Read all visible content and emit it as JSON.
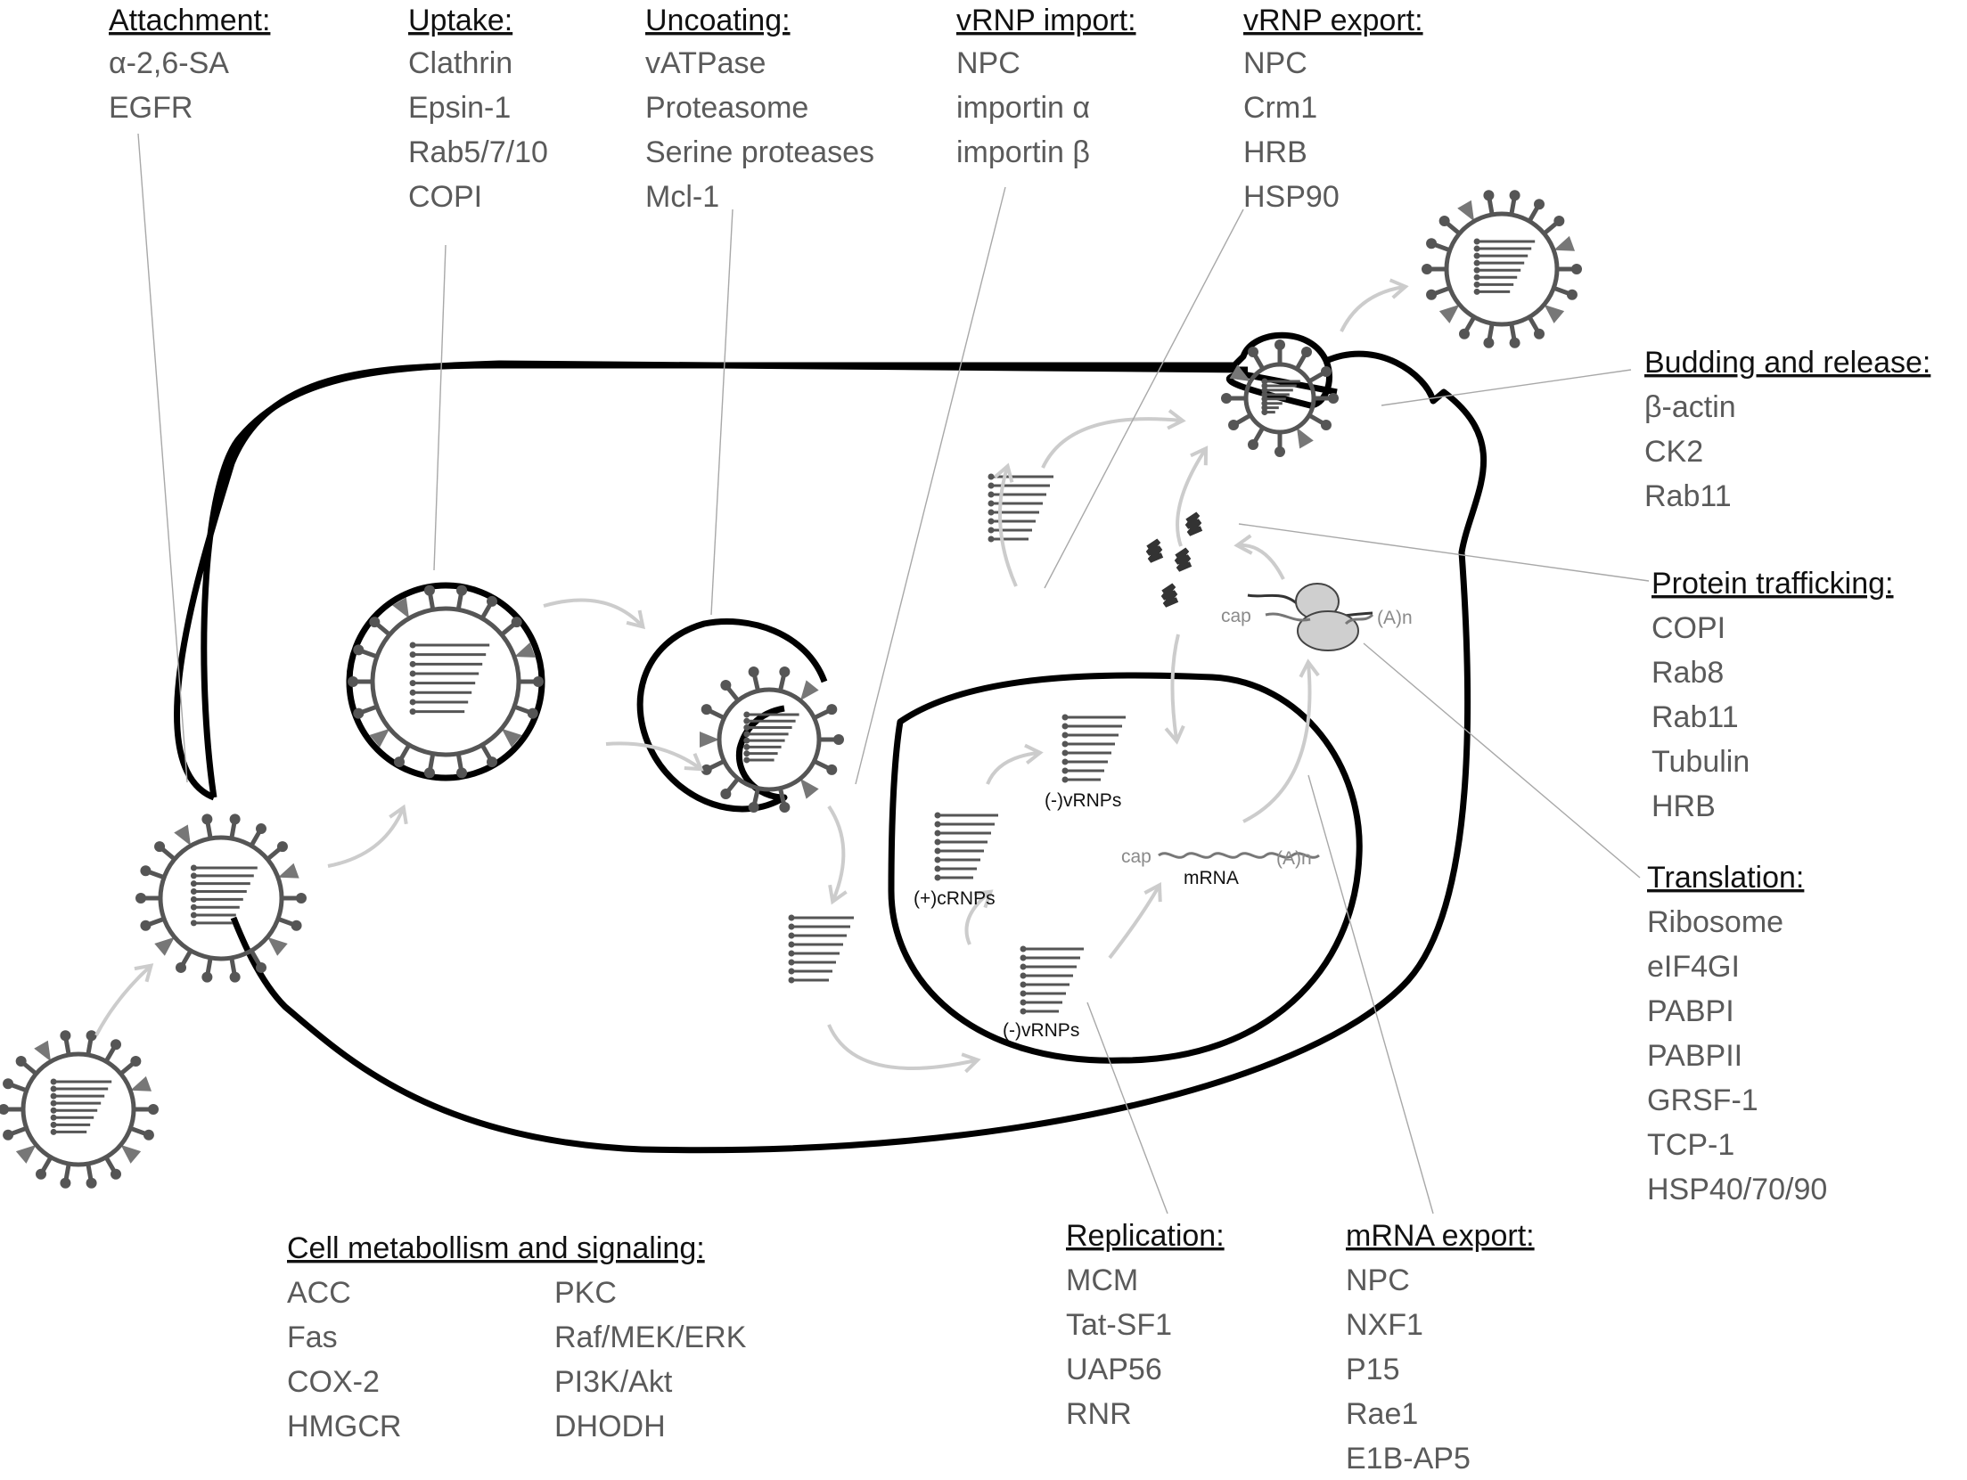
{
  "groups": {
    "attachment": {
      "title": "Attachment:",
      "items": [
        "α-2,6-SA",
        "EGFR"
      ]
    },
    "uptake": {
      "title": "Uptake:",
      "items": [
        "Clathrin",
        "Epsin-1",
        "Rab5/7/10",
        "COPI"
      ]
    },
    "uncoating": {
      "title": "Uncoating:",
      "items": [
        "vATPase",
        "Proteasome",
        "Serine proteases",
        "Mcl-1"
      ]
    },
    "vrnp_import": {
      "title": "vRNP import:",
      "items": [
        "NPC",
        "importin α",
        "importin β"
      ]
    },
    "vrnp_export": {
      "title": "vRNP export:",
      "items": [
        "NPC",
        "Crm1",
        "HRB",
        "HSP90"
      ]
    },
    "budding": {
      "title": "Budding and release:",
      "items": [
        "β-actin",
        "CK2",
        "Rab11"
      ]
    },
    "protein_trafficking": {
      "title": "Protein trafficking:",
      "items": [
        "COPI",
        "Rab8",
        "Rab11",
        "Tubulin",
        "HRB"
      ]
    },
    "translation": {
      "title": "Translation:",
      "items": [
        "Ribosome",
        "eIF4GI",
        "PABPI",
        "PABPII",
        "GRSF-1",
        "TCP-1",
        "HSP40/70/90"
      ]
    },
    "metabolism": {
      "title": "Cell metabollism and signaling:",
      "items_left": [
        "ACC",
        "Fas",
        "COX-2",
        "HMGCR"
      ],
      "items_right": [
        "PKC",
        "Raf/MEK/ERK",
        "PI3K/Akt",
        "DHODH"
      ]
    },
    "replication": {
      "title": "Replication:",
      "items": [
        "MCM",
        "Tat-SF1",
        "UAP56",
        "RNR"
      ]
    },
    "mrna_export": {
      "title": "mRNA export:",
      "items": [
        "NPC",
        "NXF1",
        "P15",
        "Rae1",
        "E1B-AP5"
      ]
    }
  },
  "nucleus_labels": {
    "vrnps_top": "(-)vRNPs",
    "crnps": "(+)cRNPs",
    "vrnps_bottom": "(-)vRNPs",
    "mrna": "mRNA",
    "cap": "cap",
    "polya": "(A)n"
  },
  "cytoplasm_labels": {
    "cap": "cap",
    "polya": "(A)n"
  },
  "colors": {
    "membrane": "#000000",
    "virus": "#555555",
    "arrow": "#cccccc",
    "leader": "#a8a8a8",
    "text": "#5a5a5a"
  }
}
